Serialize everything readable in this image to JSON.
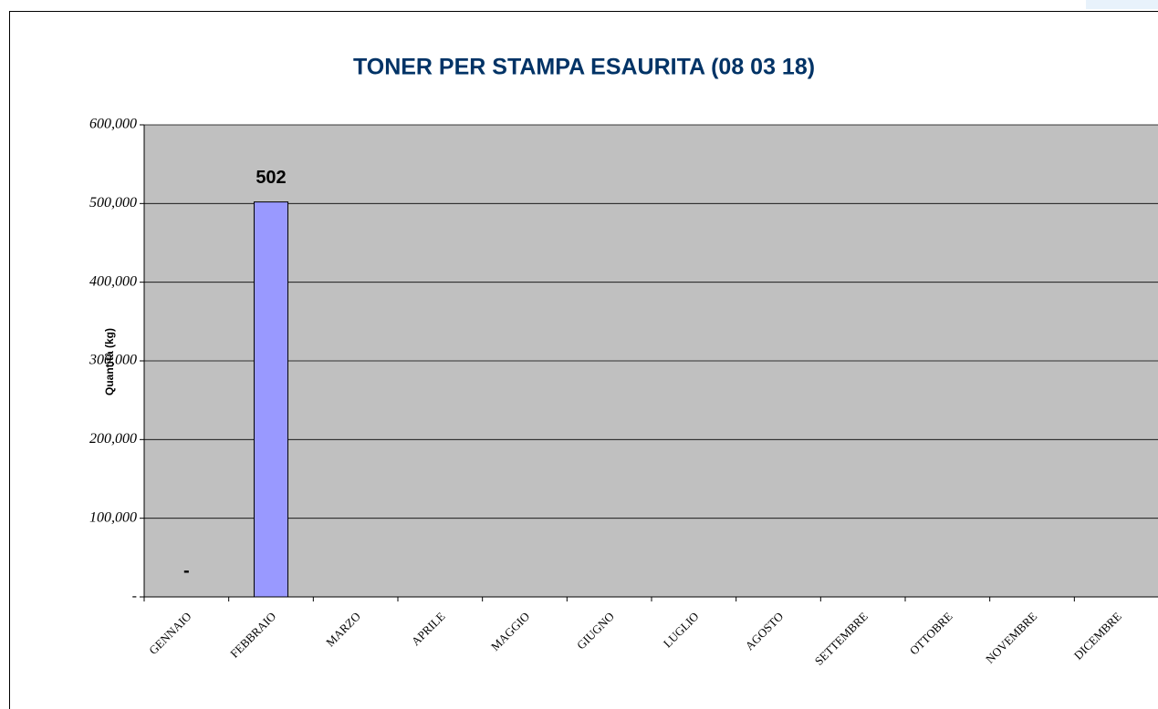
{
  "chart_data": {
    "type": "bar",
    "title": "TONER PER STAMPA ESAURITA (08 03 18)",
    "y_label": "Quantità (kg)",
    "categories": [
      "GENNAIO",
      "FEBBRAIO",
      "MARZO",
      "APRILE",
      "MAGGIO",
      "GIUGNO",
      "LUGLIO",
      "AGOSTO",
      "SETTEMBRE",
      "OTTOBRE",
      "NOVEMBRE",
      "DICEMBRE"
    ],
    "values": [
      0,
      502,
      null,
      null,
      null,
      null,
      null,
      null,
      null,
      null,
      null,
      null
    ],
    "value_labels": [
      "-",
      "502",
      null,
      null,
      null,
      null,
      null,
      null,
      null,
      null,
      null,
      null
    ],
    "color": "#9999ff",
    "ylim": [
      0,
      600
    ],
    "yticks": [
      {
        "value": 0,
        "label": "-"
      },
      {
        "value": 100,
        "label": "100,000"
      },
      {
        "value": 200,
        "label": "200,000"
      },
      {
        "value": 300,
        "label": "300,000"
      },
      {
        "value": 400,
        "label": "400,000"
      },
      {
        "value": 500,
        "label": "500,000"
      },
      {
        "value": 600,
        "label": "600,000"
      }
    ],
    "grid": true
  }
}
